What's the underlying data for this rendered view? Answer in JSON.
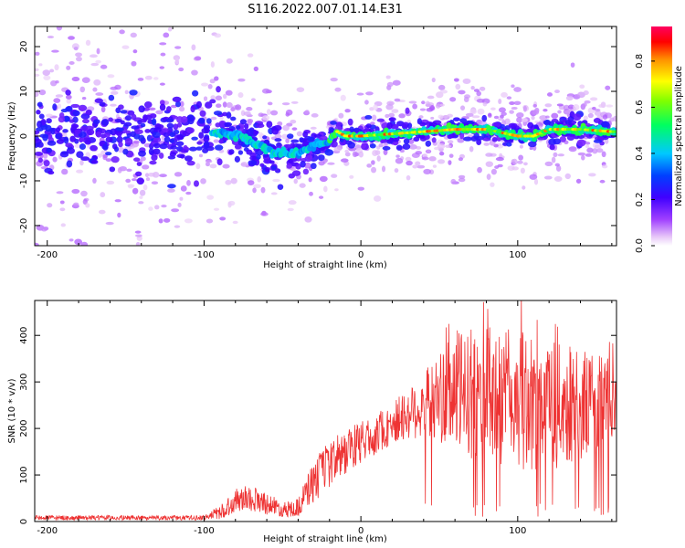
{
  "title": "S116.2022.007.01.14.E31",
  "chart_data": [
    {
      "type": "heatmap",
      "xlabel": "Height of straight line (km)",
      "ylabel": "Frequency (Hz)",
      "xlim": [
        -208,
        163
      ],
      "ylim": [
        -24.5,
        24.5
      ],
      "xticks": [
        -200,
        -100,
        0,
        100
      ],
      "yticks": [
        -20,
        -10,
        0,
        10,
        20
      ],
      "colorbar": {
        "label": "Normalized spectral amplitude",
        "ticks": [
          0.0,
          0.2,
          0.4,
          0.6,
          0.8
        ],
        "range": [
          0.0,
          0.95
        ],
        "colormap": "rainbow (white/violet at 0 -> red at max)"
      },
      "ridge": [
        {
          "x": -200,
          "y": 1
        },
        {
          "x": -150,
          "y": 0
        },
        {
          "x": -100,
          "y": 0
        },
        {
          "x": -90,
          "y": 1
        },
        {
          "x": -80,
          "y": 0
        },
        {
          "x": -70,
          "y": -1
        },
        {
          "x": -60,
          "y": -3
        },
        {
          "x": -50,
          "y": -4
        },
        {
          "x": -40,
          "y": -4
        },
        {
          "x": -30,
          "y": -2
        },
        {
          "x": -20,
          "y": -1
        },
        {
          "x": -15,
          "y": 1
        },
        {
          "x": -10,
          "y": 0
        },
        {
          "x": 0,
          "y": 0
        },
        {
          "x": 20,
          "y": 0.5
        },
        {
          "x": 40,
          "y": 1
        },
        {
          "x": 60,
          "y": 1.5
        },
        {
          "x": 80,
          "y": 1.5
        },
        {
          "x": 100,
          "y": 0
        },
        {
          "x": 110,
          "y": 0
        },
        {
          "x": 120,
          "y": 1.5
        },
        {
          "x": 140,
          "y": 1.5
        },
        {
          "x": 160,
          "y": 1
        }
      ],
      "grid": false
    },
    {
      "type": "line",
      "xlabel": "Height of straight line (km)",
      "ylabel": "SNR (10 * v/v)",
      "xlim": [
        -208,
        163
      ],
      "ylim": [
        0,
        475
      ],
      "xticks": [
        -200,
        -100,
        0,
        100
      ],
      "yticks": [
        0,
        100,
        200,
        300,
        400
      ],
      "line_color": "#ee3333",
      "envelope": [
        {
          "x": -208,
          "mean": 8,
          "spread": 5
        },
        {
          "x": -100,
          "mean": 8,
          "spread": 5
        },
        {
          "x": -90,
          "mean": 20,
          "spread": 15
        },
        {
          "x": -75,
          "mean": 55,
          "spread": 30
        },
        {
          "x": -60,
          "mean": 40,
          "spread": 25
        },
        {
          "x": -50,
          "mean": 25,
          "spread": 15
        },
        {
          "x": -40,
          "mean": 30,
          "spread": 20
        },
        {
          "x": -30,
          "mean": 90,
          "spread": 50
        },
        {
          "x": -20,
          "mean": 120,
          "spread": 50
        },
        {
          "x": -10,
          "mean": 150,
          "spread": 50
        },
        {
          "x": 0,
          "mean": 170,
          "spread": 45
        },
        {
          "x": 15,
          "mean": 200,
          "spread": 45
        },
        {
          "x": 30,
          "mean": 230,
          "spread": 55
        },
        {
          "x": 45,
          "mean": 260,
          "spread": 80
        },
        {
          "x": 60,
          "mean": 280,
          "spread": 130
        },
        {
          "x": 80,
          "mean": 270,
          "spread": 150
        },
        {
          "x": 100,
          "mean": 260,
          "spread": 150
        },
        {
          "x": 120,
          "mean": 250,
          "spread": 140
        },
        {
          "x": 140,
          "mean": 250,
          "spread": 120
        },
        {
          "x": 163,
          "mean": 260,
          "spread": 90
        }
      ],
      "grid": false
    }
  ]
}
